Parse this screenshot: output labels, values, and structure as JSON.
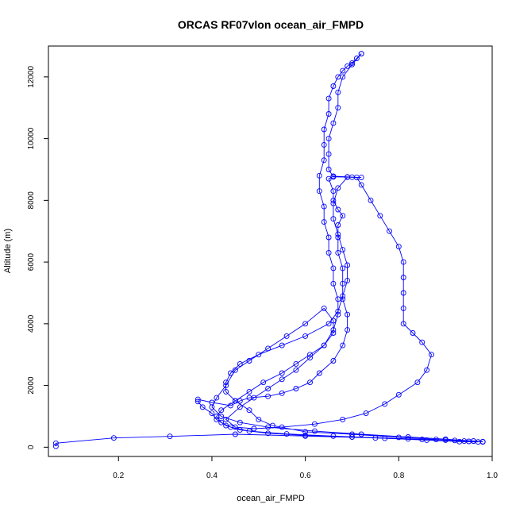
{
  "chart_data": {
    "type": "scatter",
    "title": "ORCAS RF07vlon ocean_air_FMPD",
    "xlabel": "ocean_air_FMPD",
    "ylabel": "Altitude (m)",
    "xlim": [
      0.05,
      1.0
    ],
    "ylim": [
      -300,
      13000
    ],
    "x_ticks": [
      0.2,
      0.4,
      0.6,
      0.8,
      1.0
    ],
    "x_tick_labels": [
      "0.2",
      "0.4",
      "0.6",
      "0.8",
      "1.0"
    ],
    "y_ticks": [
      0,
      2000,
      4000,
      6000,
      8000,
      10000,
      12000
    ],
    "y_tick_labels": [
      "0",
      "2000",
      "4000",
      "6000",
      "8000",
      "10000",
      "12000"
    ],
    "grid": false,
    "legend": "none",
    "color": "#0000ff",
    "marker": "open-circle",
    "series": [
      {
        "points": [
          [
            0.066,
            30
          ],
          [
            0.066,
            130
          ],
          [
            0.19,
            300
          ],
          [
            0.31,
            350
          ],
          [
            0.45,
            420
          ],
          [
            0.6,
            360
          ],
          [
            0.75,
            300
          ],
          [
            0.85,
            250
          ],
          [
            0.92,
            220
          ],
          [
            0.96,
            200
          ],
          [
            0.98,
            180
          ],
          [
            0.95,
            190
          ],
          [
            0.9,
            230
          ],
          [
            0.82,
            270
          ],
          [
            0.7,
            330
          ],
          [
            0.6,
            380
          ],
          [
            0.52,
            450
          ],
          [
            0.46,
            560
          ],
          [
            0.43,
            700
          ],
          [
            0.41,
            900
          ],
          [
            0.4,
            1100
          ],
          [
            0.38,
            1300
          ],
          [
            0.37,
            1480
          ],
          [
            0.37,
            1550
          ],
          [
            0.4,
            1450
          ],
          [
            0.44,
            1350
          ],
          [
            0.46,
            1500
          ],
          [
            0.48,
            1600
          ],
          [
            0.52,
            1650
          ],
          [
            0.55,
            1750
          ],
          [
            0.58,
            1900
          ],
          [
            0.61,
            2100
          ],
          [
            0.63,
            2400
          ],
          [
            0.66,
            2800
          ],
          [
            0.68,
            3300
          ],
          [
            0.69,
            3800
          ],
          [
            0.69,
            4300
          ],
          [
            0.68,
            4800
          ],
          [
            0.68,
            5300
          ],
          [
            0.68,
            5800
          ],
          [
            0.67,
            6300
          ],
          [
            0.67,
            6800
          ],
          [
            0.67,
            7200
          ],
          [
            0.68,
            7500
          ],
          [
            0.67,
            7700
          ],
          [
            0.66,
            8000
          ],
          [
            0.66,
            8300
          ],
          [
            0.65,
            8700
          ],
          [
            0.66,
            8780
          ],
          [
            0.69,
            8760
          ],
          [
            0.71,
            8740
          ],
          [
            0.72,
            8500
          ],
          [
            0.74,
            8000
          ],
          [
            0.76,
            7500
          ],
          [
            0.78,
            7000
          ],
          [
            0.8,
            6500
          ],
          [
            0.81,
            6000
          ],
          [
            0.81,
            5500
          ],
          [
            0.81,
            5000
          ],
          [
            0.81,
            4500
          ],
          [
            0.81,
            4000
          ],
          [
            0.83,
            3700
          ],
          [
            0.85,
            3400
          ],
          [
            0.87,
            3000
          ],
          [
            0.86,
            2500
          ],
          [
            0.84,
            2100
          ],
          [
            0.8,
            1700
          ],
          [
            0.77,
            1400
          ],
          [
            0.73,
            1100
          ],
          [
            0.68,
            900
          ],
          [
            0.62,
            750
          ],
          [
            0.55,
            650
          ],
          [
            0.49,
            600
          ],
          [
            0.45,
            650
          ],
          [
            0.43,
            900
          ],
          [
            0.46,
            1300
          ],
          [
            0.49,
            1600
          ],
          [
            0.52,
            1900
          ],
          [
            0.55,
            2200
          ],
          [
            0.58,
            2500
          ],
          [
            0.61,
            2900
          ],
          [
            0.64,
            3300
          ],
          [
            0.66,
            3800
          ],
          [
            0.67,
            4300
          ],
          [
            0.67,
            4800
          ],
          [
            0.66,
            5300
          ],
          [
            0.66,
            5800
          ],
          [
            0.65,
            6300
          ],
          [
            0.65,
            6800
          ],
          [
            0.64,
            7300
          ],
          [
            0.64,
            7800
          ],
          [
            0.63,
            8300
          ],
          [
            0.63,
            8800
          ],
          [
            0.64,
            9300
          ],
          [
            0.64,
            9800
          ],
          [
            0.64,
            10300
          ],
          [
            0.65,
            10800
          ],
          [
            0.65,
            11300
          ],
          [
            0.66,
            11700
          ],
          [
            0.67,
            12000
          ],
          [
            0.68,
            12200
          ],
          [
            0.69,
            12350
          ],
          [
            0.7,
            12450
          ],
          [
            0.71,
            12600
          ],
          [
            0.72,
            12750
          ]
        ]
      },
      {
        "points": [
          [
            0.72,
            12750
          ],
          [
            0.7,
            12400
          ],
          [
            0.68,
            12000
          ],
          [
            0.67,
            11500
          ],
          [
            0.67,
            11000
          ],
          [
            0.66,
            10500
          ],
          [
            0.65,
            10000
          ],
          [
            0.65,
            9500
          ],
          [
            0.65,
            9000
          ],
          [
            0.66,
            8760
          ],
          [
            0.7,
            8750
          ],
          [
            0.72,
            8740
          ],
          [
            0.69,
            8750
          ],
          [
            0.67,
            8400
          ],
          [
            0.66,
            7900
          ],
          [
            0.66,
            7400
          ],
          [
            0.67,
            6900
          ],
          [
            0.68,
            6400
          ],
          [
            0.69,
            5900
          ],
          [
            0.69,
            5400
          ],
          [
            0.68,
            4900
          ],
          [
            0.67,
            4400
          ],
          [
            0.65,
            4000
          ],
          [
            0.6,
            3600
          ],
          [
            0.55,
            3300
          ],
          [
            0.5,
            3000
          ],
          [
            0.46,
            2700
          ],
          [
            0.44,
            2400
          ],
          [
            0.43,
            2100
          ],
          [
            0.43,
            1800
          ],
          [
            0.45,
            1500
          ],
          [
            0.48,
            1200
          ],
          [
            0.5,
            900
          ],
          [
            0.53,
            700
          ],
          [
            0.6,
            500
          ],
          [
            0.7,
            420
          ],
          [
            0.8,
            320
          ],
          [
            0.88,
            250
          ],
          [
            0.94,
            200
          ],
          [
            0.97,
            170
          ],
          [
            0.93,
            180
          ],
          [
            0.86,
            230
          ],
          [
            0.77,
            290
          ],
          [
            0.66,
            360
          ],
          [
            0.56,
            430
          ],
          [
            0.48,
            520
          ],
          [
            0.44,
            650
          ],
          [
            0.42,
            800
          ],
          [
            0.41,
            1000
          ],
          [
            0.42,
            1200
          ],
          [
            0.45,
            1500
          ],
          [
            0.48,
            1800
          ],
          [
            0.51,
            2100
          ],
          [
            0.55,
            2400
          ],
          [
            0.58,
            2700
          ],
          [
            0.61,
            3000
          ],
          [
            0.64,
            3300
          ],
          [
            0.66,
            3700
          ],
          [
            0.66,
            4100
          ],
          [
            0.64,
            4500
          ],
          [
            0.6,
            4000
          ],
          [
            0.56,
            3600
          ],
          [
            0.52,
            3200
          ],
          [
            0.48,
            2800
          ],
          [
            0.45,
            2500
          ],
          [
            0.43,
            2000
          ],
          [
            0.41,
            1600
          ],
          [
            0.4,
            1300
          ],
          [
            0.42,
            1000
          ],
          [
            0.46,
            800
          ],
          [
            0.52,
            650
          ],
          [
            0.62,
            520
          ],
          [
            0.72,
            420
          ],
          [
            0.82,
            330
          ],
          [
            0.9,
            260
          ],
          [
            0.96,
            200
          ],
          [
            0.98,
            170
          ]
        ]
      }
    ]
  }
}
